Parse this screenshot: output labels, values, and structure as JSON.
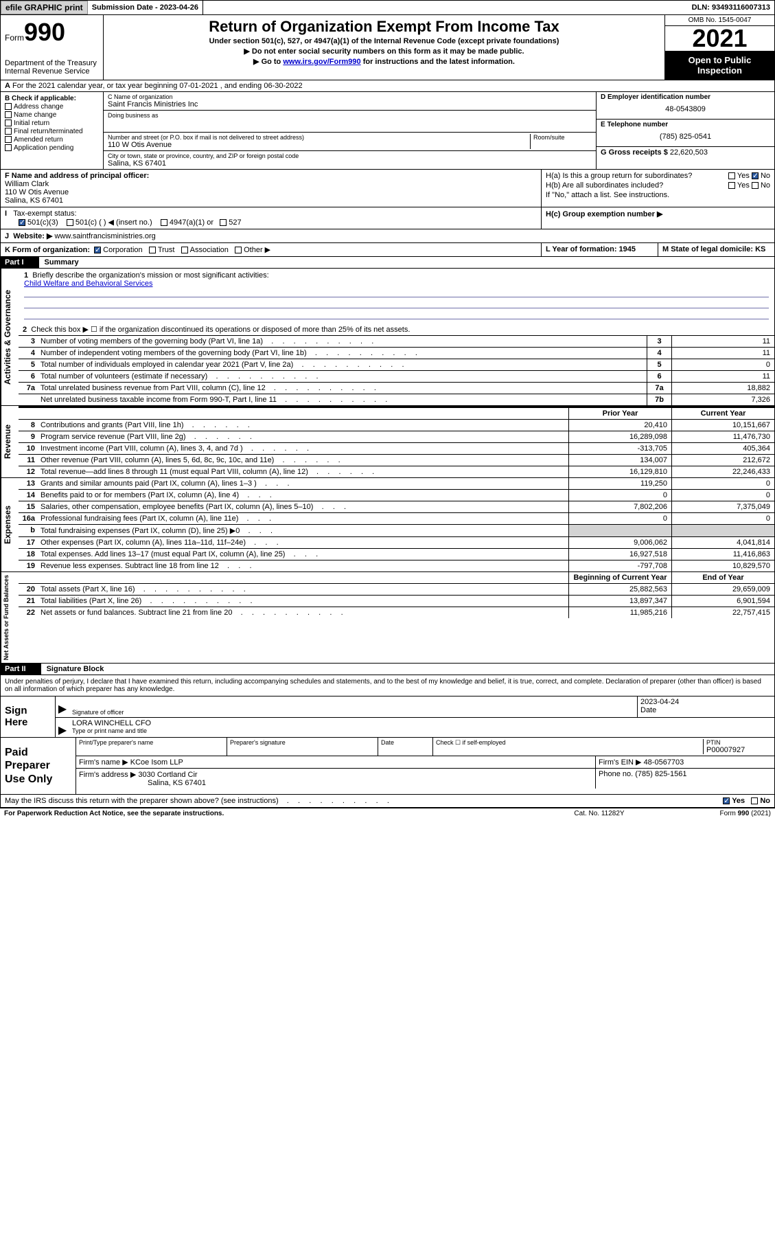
{
  "topbar": {
    "efile": "efile GRAPHIC print",
    "submission_label": "Submission Date - 2023-04-26",
    "dln_label": "DLN: 93493116007313"
  },
  "header": {
    "form_word": "Form",
    "form_no": "990",
    "dept": "Department of the Treasury",
    "irs": "Internal Revenue Service",
    "title": "Return of Organization Exempt From Income Tax",
    "sub1": "Under section 501(c), 527, or 4947(a)(1) of the Internal Revenue Code (except private foundations)",
    "sub2": "▶ Do not enter social security numbers on this form as it may be made public.",
    "sub3_pre": "▶ Go to ",
    "sub3_link": "www.irs.gov/Form990",
    "sub3_post": " for instructions and the latest information.",
    "omb": "OMB No. 1545-0047",
    "year": "2021",
    "inspect1": "Open to Public",
    "inspect2": "Inspection"
  },
  "A": {
    "text": "For the 2021 calendar year, or tax year beginning 07-01-2021   , and ending 06-30-2022"
  },
  "B": {
    "label": "B Check if applicable:",
    "opts": [
      "Address change",
      "Name change",
      "Initial return",
      "Final return/terminated",
      "Amended return",
      "Application pending"
    ]
  },
  "C": {
    "name_label": "C Name of organization",
    "name": "Saint Francis Ministries Inc",
    "dba_label": "Doing business as",
    "dba": "",
    "addr_label": "Number and street (or P.O. box if mail is not delivered to street address)",
    "room_label": "Room/suite",
    "addr": "110 W Otis Avenue",
    "city_label": "City or town, state or province, country, and ZIP or foreign postal code",
    "city": "Salina, KS  67401"
  },
  "D": {
    "label": "D Employer identification number",
    "ein": "48-0543809"
  },
  "E": {
    "label": "E Telephone number",
    "phone": "(785) 825-0541"
  },
  "G": {
    "label": "G Gross receipts $",
    "amount": "22,620,503"
  },
  "F": {
    "label": "F  Name and address of principal officer:",
    "name": "William Clark",
    "addr1": "110 W Otis Avenue",
    "addr2": "Salina, KS  67401"
  },
  "H": {
    "a_label": "H(a)  Is this a group return for subordinates?",
    "yes": "Yes",
    "no": "No",
    "b_label": "H(b)  Are all subordinates included?",
    "b_note": "If \"No,\" attach a list. See instructions.",
    "c_label": "H(c)  Group exemption number ▶"
  },
  "I": {
    "label": "Tax-exempt status:",
    "opts": [
      "501(c)(3)",
      "501(c) (  ) ◀ (insert no.)",
      "4947(a)(1) or",
      "527"
    ]
  },
  "J": {
    "label": "Website: ▶",
    "url": "www.saintfrancisministries.org"
  },
  "K": {
    "label": "K Form of organization:",
    "opts": [
      "Corporation",
      "Trust",
      "Association",
      "Other ▶"
    ]
  },
  "L": {
    "label": "L Year of formation: 1945"
  },
  "M": {
    "label": "M State of legal domicile: KS"
  },
  "part1": {
    "hdr": "Part I",
    "title": "Summary"
  },
  "mission": {
    "q1": "Briefly describe the organization's mission or most significant activities:",
    "text": "Child Welfare and Behavioral Services",
    "q2": "Check this box ▶ ☐  if the organization discontinued its operations or disposed of more than 25% of its net assets."
  },
  "tab_ag": "Activities & Governance",
  "tab_rev": "Revenue",
  "tab_exp": "Expenses",
  "tab_na": "Net Assets or Fund Balances",
  "ag": [
    {
      "n": "3",
      "d": "Number of voting members of the governing body (Part VI, line 1a)",
      "c": "3",
      "v": "11"
    },
    {
      "n": "4",
      "d": "Number of independent voting members of the governing body (Part VI, line 1b)",
      "c": "4",
      "v": "11"
    },
    {
      "n": "5",
      "d": "Total number of individuals employed in calendar year 2021 (Part V, line 2a)",
      "c": "5",
      "v": "0"
    },
    {
      "n": "6",
      "d": "Total number of volunteers (estimate if necessary)",
      "c": "6",
      "v": "11"
    },
    {
      "n": "7a",
      "d": "Total unrelated business revenue from Part VIII, column (C), line 12",
      "c": "7a",
      "v": "18,882"
    },
    {
      "n": "",
      "d": "Net unrelated business taxable income from Form 990-T, Part I, line 11",
      "c": "7b",
      "v": "7,326"
    }
  ],
  "colhdr": {
    "prior": "Prior Year",
    "current": "Current Year"
  },
  "rev": [
    {
      "n": "8",
      "d": "Contributions and grants (Part VIII, line 1h)",
      "p": "20,410",
      "c": "10,151,667"
    },
    {
      "n": "9",
      "d": "Program service revenue (Part VIII, line 2g)",
      "p": "16,289,098",
      "c": "11,476,730"
    },
    {
      "n": "10",
      "d": "Investment income (Part VIII, column (A), lines 3, 4, and 7d )",
      "p": "-313,705",
      "c": "405,364"
    },
    {
      "n": "11",
      "d": "Other revenue (Part VIII, column (A), lines 5, 6d, 8c, 9c, 10c, and 11e)",
      "p": "134,007",
      "c": "212,672"
    },
    {
      "n": "12",
      "d": "Total revenue—add lines 8 through 11 (must equal Part VIII, column (A), line 12)",
      "p": "16,129,810",
      "c": "22,246,433"
    }
  ],
  "exp": [
    {
      "n": "13",
      "d": "Grants and similar amounts paid (Part IX, column (A), lines 1–3 )",
      "p": "119,250",
      "c": "0"
    },
    {
      "n": "14",
      "d": "Benefits paid to or for members (Part IX, column (A), line 4)",
      "p": "0",
      "c": "0"
    },
    {
      "n": "15",
      "d": "Salaries, other compensation, employee benefits (Part IX, column (A), lines 5–10)",
      "p": "7,802,206",
      "c": "7,375,049"
    },
    {
      "n": "16a",
      "d": "Professional fundraising fees (Part IX, column (A), line 11e)",
      "p": "0",
      "c": "0"
    },
    {
      "n": "b",
      "d": "Total fundraising expenses (Part IX, column (D), line 25) ▶0",
      "p": "",
      "c": "",
      "grey": true
    },
    {
      "n": "17",
      "d": "Other expenses (Part IX, column (A), lines 11a–11d, 11f–24e)",
      "p": "9,006,062",
      "c": "4,041,814"
    },
    {
      "n": "18",
      "d": "Total expenses. Add lines 13–17 (must equal Part IX, column (A), line 25)",
      "p": "16,927,518",
      "c": "11,416,863"
    },
    {
      "n": "19",
      "d": "Revenue less expenses. Subtract line 18 from line 12",
      "p": "-797,708",
      "c": "10,829,570"
    }
  ],
  "nahdr": {
    "b": "Beginning of Current Year",
    "e": "End of Year"
  },
  "na": [
    {
      "n": "20",
      "d": "Total assets (Part X, line 16)",
      "p": "25,882,563",
      "c": "29,659,009"
    },
    {
      "n": "21",
      "d": "Total liabilities (Part X, line 26)",
      "p": "13,897,347",
      "c": "6,901,594"
    },
    {
      "n": "22",
      "d": "Net assets or fund balances. Subtract line 21 from line 20",
      "p": "11,985,216",
      "c": "22,757,415"
    }
  ],
  "part2": {
    "hdr": "Part II",
    "title": "Signature Block"
  },
  "sigdecl": "Under penalties of perjury, I declare that I have examined this return, including accompanying schedules and statements, and to the best of my knowledge and belief, it is true, correct, and complete. Declaration of preparer (other than officer) is based on all information of which preparer has any knowledge.",
  "sign": {
    "here": "Sign Here",
    "sig_label": "Signature of officer",
    "date_label": "Date",
    "date": "2023-04-24",
    "name": "LORA WINCHELL CFO",
    "name_label": "Type or print name and title"
  },
  "prep": {
    "label": "Paid Preparer Use Only",
    "h1": "Print/Type preparer's name",
    "h2": "Preparer's signature",
    "h3": "Date",
    "check_label": "Check ☐ if self-employed",
    "ptin_label": "PTIN",
    "ptin": "P00007927",
    "firm_name_label": "Firm's name   ▶",
    "firm_name": "KCoe Isom LLP",
    "firm_ein_label": "Firm's EIN ▶",
    "firm_ein": "48-0567703",
    "firm_addr_label": "Firm's address ▶",
    "firm_addr": "3030 Cortland Cir",
    "firm_addr2": "Salina, KS  67401",
    "phone_label": "Phone no.",
    "phone": "(785) 825-1561"
  },
  "discuss": {
    "q": "May the IRS discuss this return with the preparer shown above? (see instructions)",
    "yes": "Yes",
    "no": "No"
  },
  "footer": {
    "left": "For Paperwork Reduction Act Notice, see the separate instructions.",
    "mid": "Cat. No. 11282Y",
    "right": "Form 990 (2021)"
  }
}
